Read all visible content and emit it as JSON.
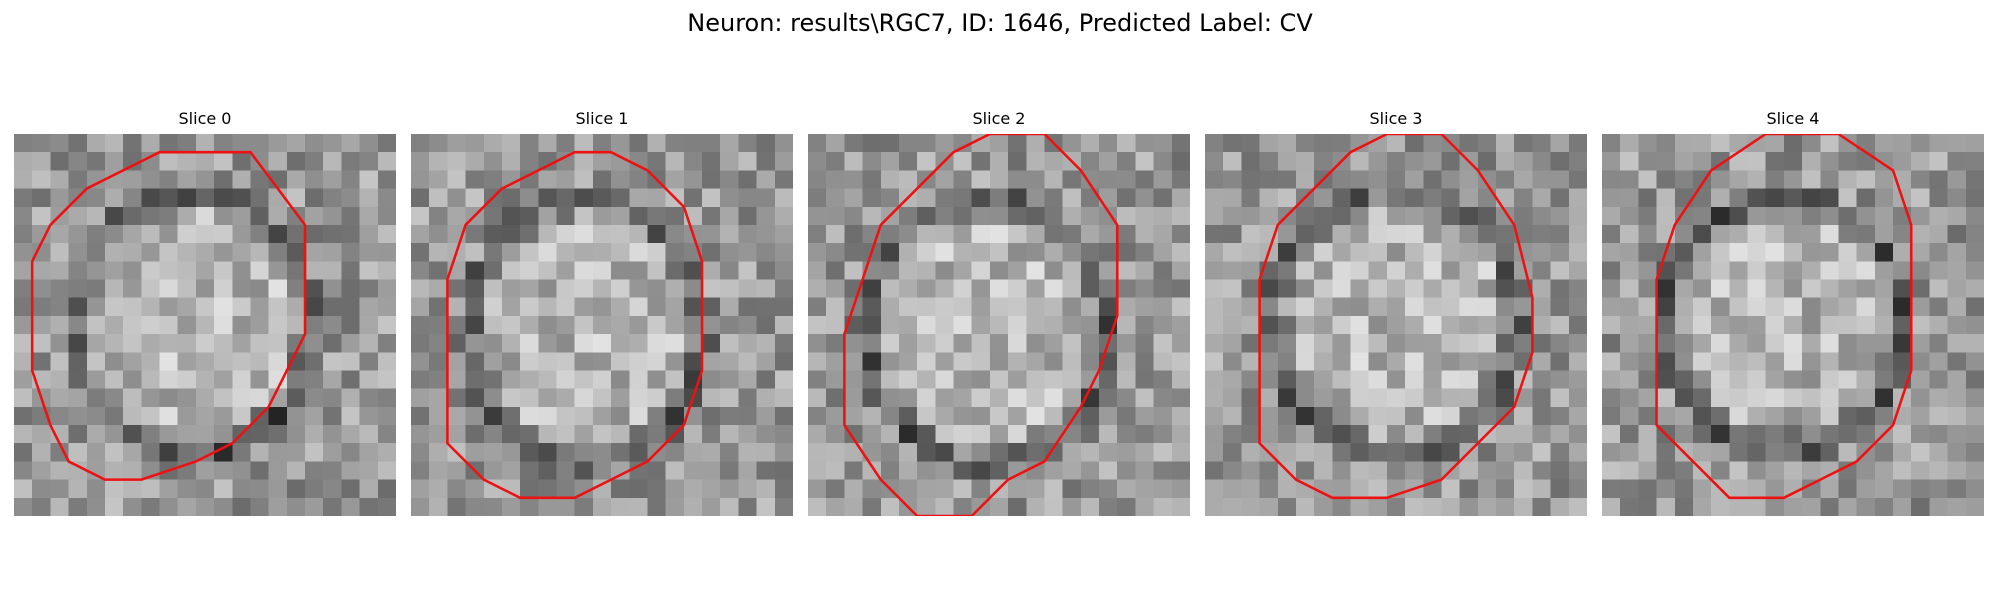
{
  "figure": {
    "title": "Neuron: results\\RGC7, ID: 1646, Predicted Label: CV"
  },
  "colors": {
    "contour": "#ee1111",
    "background": "#ffffff"
  },
  "panels": [
    {
      "title": "Slice 0",
      "image_name": "grayscale-microscopy-slice",
      "contour_name": "red-contour-outline",
      "seed": 11,
      "contour": [
        [
          10,
          1
        ],
        [
          13,
          1
        ],
        [
          16,
          5
        ],
        [
          16,
          8
        ],
        [
          16,
          11
        ],
        [
          15,
          13
        ],
        [
          14,
          15
        ],
        [
          12,
          17
        ],
        [
          10,
          18
        ],
        [
          7,
          19
        ],
        [
          5,
          19
        ],
        [
          3,
          18
        ],
        [
          2,
          16
        ],
        [
          1,
          13
        ],
        [
          1,
          10
        ],
        [
          1,
          7
        ],
        [
          2,
          5
        ],
        [
          4,
          3
        ],
        [
          6,
          2
        ],
        [
          8,
          1
        ]
      ],
      "ring": {
        "cx": 9.8,
        "cy": 10.5,
        "rx": 7.1,
        "ry": 7.8
      }
    },
    {
      "title": "Slice 1",
      "image_name": "grayscale-microscopy-slice",
      "contour_name": "red-contour-outline",
      "seed": 23,
      "contour": [
        [
          11,
          1
        ],
        [
          13,
          2
        ],
        [
          15,
          4
        ],
        [
          16,
          7
        ],
        [
          16,
          13
        ],
        [
          15,
          16
        ],
        [
          13,
          18
        ],
        [
          11,
          19
        ],
        [
          9,
          20
        ],
        [
          6,
          20
        ],
        [
          4,
          19
        ],
        [
          2,
          17
        ],
        [
          2,
          14
        ],
        [
          2,
          11
        ],
        [
          2,
          8
        ],
        [
          3,
          5
        ],
        [
          5,
          3
        ],
        [
          7,
          2
        ],
        [
          9,
          1
        ]
      ],
      "ring": {
        "cx": 9.6,
        "cy": 10.8,
        "rx": 7.0,
        "ry": 8.0
      }
    },
    {
      "title": "Slice 2",
      "image_name": "grayscale-microscopy-slice",
      "contour_name": "red-contour-outline",
      "seed": 37,
      "contour": [
        [
          10,
          0
        ],
        [
          13,
          0
        ],
        [
          15,
          2
        ],
        [
          17,
          5
        ],
        [
          17,
          10
        ],
        [
          16,
          13
        ],
        [
          15,
          15
        ],
        [
          13,
          18
        ],
        [
          11,
          19
        ],
        [
          10,
          20
        ],
        [
          9,
          21
        ],
        [
          6,
          21
        ],
        [
          4,
          19
        ],
        [
          2,
          16
        ],
        [
          2,
          11
        ],
        [
          3,
          8
        ],
        [
          4,
          5
        ],
        [
          6,
          3
        ],
        [
          8,
          1
        ]
      ],
      "ring": {
        "cx": 9.8,
        "cy": 10.8,
        "rx": 7.2,
        "ry": 8.1
      }
    },
    {
      "title": "Slice 3",
      "image_name": "grayscale-microscopy-slice",
      "contour_name": "red-contour-outline",
      "seed": 53,
      "contour": [
        [
          10,
          0
        ],
        [
          13,
          0
        ],
        [
          15,
          2
        ],
        [
          17,
          5
        ],
        [
          18,
          9
        ],
        [
          18,
          12
        ],
        [
          17,
          15
        ],
        [
          15,
          17
        ],
        [
          13,
          19
        ],
        [
          10,
          20
        ],
        [
          7,
          20
        ],
        [
          5,
          19
        ],
        [
          3,
          17
        ],
        [
          3,
          12
        ],
        [
          3,
          8
        ],
        [
          4,
          5
        ],
        [
          6,
          3
        ],
        [
          8,
          1
        ]
      ],
      "ring": {
        "cx": 10.4,
        "cy": 10.4,
        "rx": 7.4,
        "ry": 8.0
      }
    },
    {
      "title": "Slice 4",
      "image_name": "grayscale-microscopy-slice",
      "contour_name": "red-contour-outline",
      "seed": 71,
      "contour": [
        [
          9,
          0
        ],
        [
          13,
          0
        ],
        [
          16,
          2
        ],
        [
          17,
          5
        ],
        [
          17,
          10
        ],
        [
          17,
          13
        ],
        [
          16,
          16
        ],
        [
          14,
          18
        ],
        [
          12,
          19
        ],
        [
          10,
          20
        ],
        [
          7,
          20
        ],
        [
          5,
          18
        ],
        [
          3,
          16
        ],
        [
          3,
          12
        ],
        [
          3,
          8
        ],
        [
          4,
          5
        ],
        [
          6,
          2
        ]
      ],
      "ring": {
        "cx": 10.0,
        "cy": 10.4,
        "rx": 7.2,
        "ry": 7.6
      }
    }
  ]
}
